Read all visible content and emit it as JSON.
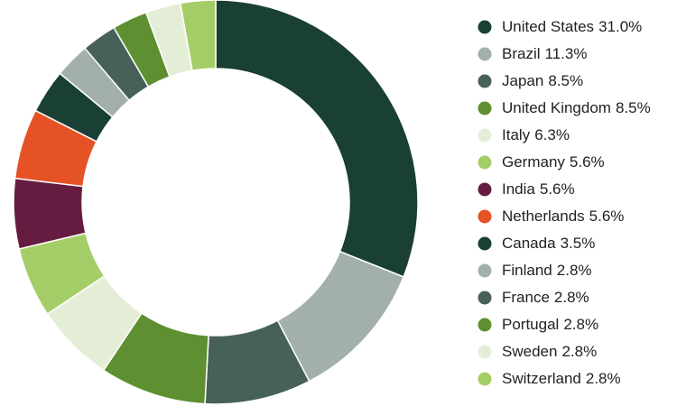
{
  "chart_data": {
    "type": "donut",
    "categories": [
      "United States",
      "Brazil",
      "Japan",
      "United Kingdom",
      "Italy",
      "Germany",
      "India",
      "Netherlands",
      "Canada",
      "Finland",
      "France",
      "Portugal",
      "Sweden",
      "Switzerland"
    ],
    "values": [
      31.0,
      11.3,
      8.5,
      8.5,
      6.3,
      5.6,
      5.6,
      5.6,
      3.5,
      2.8,
      2.8,
      2.8,
      2.8,
      2.8
    ],
    "value_labels": [
      "31.0%",
      "11.3%",
      "8.5%",
      "8.5%",
      "6.3%",
      "5.6%",
      "5.6%",
      "5.6%",
      "3.5%",
      "2.8%",
      "2.8%",
      "2.8%",
      "2.8%",
      "2.8%"
    ],
    "colors": [
      "#1a3f35",
      "#a3b0aa",
      "#47615a",
      "#5e8f31",
      "#e4eed7",
      "#a5cd67",
      "#661c41",
      "#e45226",
      "#1a3f35",
      "#a3b0aa",
      "#47615a",
      "#5e8f31",
      "#e4eed7",
      "#a5cd67"
    ]
  }
}
